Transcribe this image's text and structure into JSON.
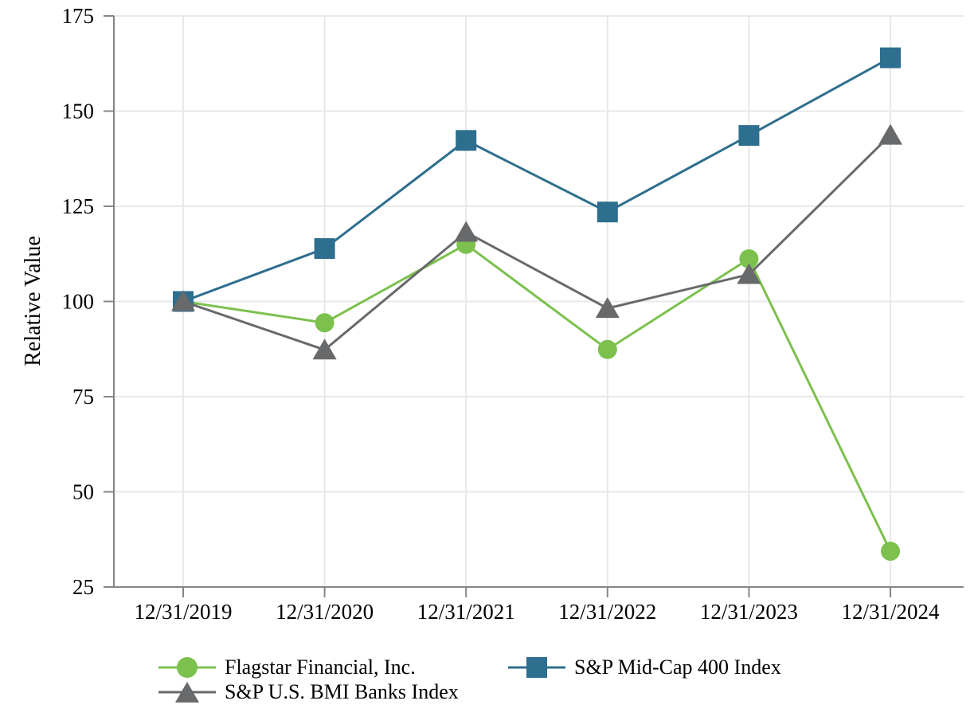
{
  "chart_data": {
    "type": "line",
    "title": "",
    "xlabel": "",
    "ylabel": "Relative Value",
    "ylim": [
      25,
      175
    ],
    "y_ticks": [
      25,
      50,
      75,
      100,
      125,
      150,
      175
    ],
    "categories": [
      "12/31/2019",
      "12/31/2020",
      "12/31/2021",
      "12/31/2022",
      "12/31/2023",
      "12/31/2024"
    ],
    "series": [
      {
        "name": "Flagstar Financial, Inc.",
        "marker": "circle",
        "color": "#7cc04e",
        "values": [
          100,
          94.4,
          115.0,
          87.4,
          111.2,
          34.4
        ]
      },
      {
        "name": "S&P Mid-Cap 400 Index",
        "marker": "square",
        "color": "#2e6e8e",
        "values": [
          100,
          113.9,
          142.3,
          123.5,
          143.6,
          164.0
        ]
      },
      {
        "name": "S&P U.S. BMI Banks Index",
        "marker": "triangle",
        "color": "#68696b",
        "values": [
          100,
          87.3,
          118.2,
          98.2,
          107.1,
          143.7
        ]
      }
    ],
    "grid": true,
    "legend_position": "bottom",
    "colors": {
      "grid": "#e8e8e8",
      "axis": "#858585",
      "text": "#000000",
      "background": "#ffffff"
    }
  }
}
